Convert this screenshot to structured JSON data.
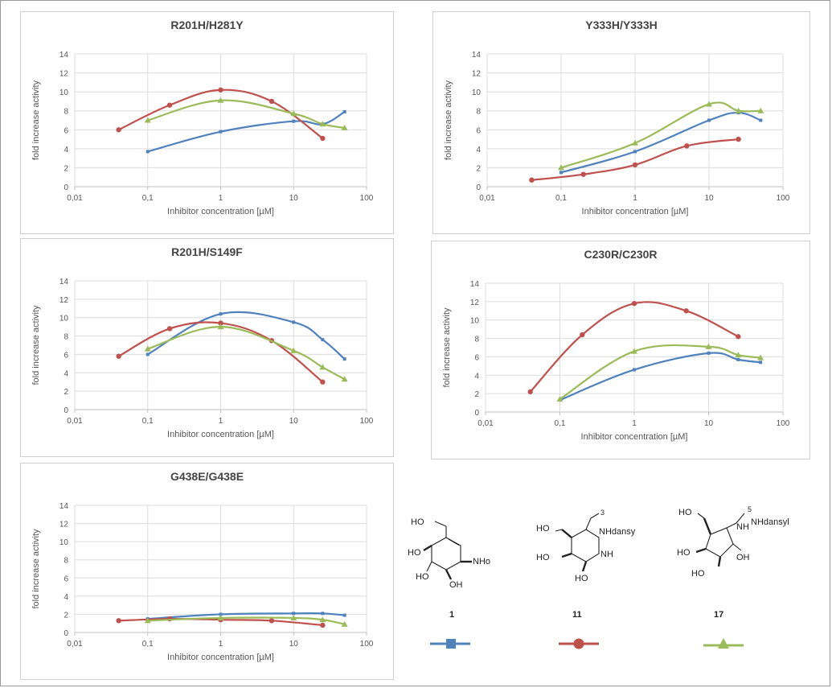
{
  "chart_data": [
    {
      "type": "line",
      "title": "R201H/H281Y",
      "xlabel": "Inhibitor concentration [µM]",
      "ylabel": "fold increase activity",
      "xscale": "log",
      "xlim": [
        0.01,
        100
      ],
      "ylim": [
        0,
        14
      ],
      "xticks": [
        "0,01",
        "0,1",
        "1",
        "10",
        "100"
      ],
      "yticks": [
        "0",
        "2",
        "4",
        "6",
        "8",
        "10",
        "12",
        "14"
      ],
      "grid": true,
      "series": [
        {
          "color": "#4f81bd",
          "marker": "square",
          "x": [
            0.1,
            1,
            10,
            25,
            50
          ],
          "y": [
            3.7,
            5.8,
            6.9,
            6.6,
            7.9
          ]
        },
        {
          "color": "#c0504d",
          "marker": "circle",
          "x": [
            0.04,
            0.2,
            1,
            5,
            25
          ],
          "y": [
            6.0,
            8.6,
            10.2,
            9.0,
            5.1
          ]
        },
        {
          "color": "#9bbb59",
          "marker": "triangle",
          "x": [
            0.1,
            1,
            10,
            25,
            50
          ],
          "y": [
            7.0,
            9.1,
            7.7,
            6.6,
            6.2
          ]
        }
      ]
    },
    {
      "type": "line",
      "title": "Y333H/Y333H",
      "xlabel": "Inhibitor concentration [µM]",
      "ylabel": "fold increase activity",
      "xscale": "log",
      "xlim": [
        0.01,
        100
      ],
      "ylim": [
        0,
        14
      ],
      "xticks": [
        "0,01",
        "0,1",
        "1",
        "10",
        "100"
      ],
      "yticks": [
        "0",
        "2",
        "4",
        "6",
        "8",
        "10",
        "12",
        "14"
      ],
      "grid": true,
      "series": [
        {
          "color": "#4f81bd",
          "marker": "square",
          "x": [
            0.1,
            1,
            10,
            25,
            50
          ],
          "y": [
            1.5,
            3.7,
            7.0,
            7.8,
            7.0
          ]
        },
        {
          "color": "#c0504d",
          "marker": "circle",
          "x": [
            0.04,
            0.2,
            1,
            5,
            25
          ],
          "y": [
            0.7,
            1.3,
            2.3,
            4.3,
            5.0
          ]
        },
        {
          "color": "#9bbb59",
          "marker": "triangle",
          "x": [
            0.1,
            1,
            10,
            25,
            50
          ],
          "y": [
            2.0,
            4.6,
            8.7,
            8.0,
            8.0
          ]
        }
      ]
    },
    {
      "type": "line",
      "title": "R201H/S149F",
      "xlabel": "Inhibitor concentration [µM]",
      "ylabel": "fold increase activity",
      "xscale": "log",
      "xlim": [
        0.01,
        100
      ],
      "ylim": [
        0,
        14
      ],
      "xticks": [
        "0,01",
        "0,1",
        "1",
        "10",
        "100"
      ],
      "yticks": [
        "0",
        "2",
        "4",
        "6",
        "8",
        "10",
        "12",
        "14"
      ],
      "grid": true,
      "series": [
        {
          "color": "#4f81bd",
          "marker": "square",
          "x": [
            0.1,
            1,
            10,
            25,
            50
          ],
          "y": [
            6.0,
            10.4,
            9.5,
            7.6,
            5.5
          ]
        },
        {
          "color": "#c0504d",
          "marker": "circle",
          "x": [
            0.04,
            0.2,
            1,
            5,
            25
          ],
          "y": [
            5.8,
            8.8,
            9.4,
            7.5,
            3.0
          ]
        },
        {
          "color": "#9bbb59",
          "marker": "triangle",
          "x": [
            0.1,
            1,
            10,
            25,
            50
          ],
          "y": [
            6.6,
            9.0,
            6.4,
            4.6,
            3.3
          ]
        }
      ]
    },
    {
      "type": "line",
      "title": "C230R/C230R",
      "xlabel": "Inhibitor concentration [µM]",
      "ylabel": "fold increase activity",
      "xscale": "log",
      "xlim": [
        0.01,
        100
      ],
      "ylim": [
        0,
        14
      ],
      "xticks": [
        "0,01",
        "0,1",
        "1",
        "10",
        "100"
      ],
      "yticks": [
        "0",
        "2",
        "4",
        "6",
        "8",
        "10",
        "12",
        "14"
      ],
      "grid": true,
      "series": [
        {
          "color": "#4f81bd",
          "marker": "square",
          "x": [
            0.1,
            1,
            10,
            25,
            50
          ],
          "y": [
            1.3,
            4.6,
            6.4,
            5.7,
            5.4
          ]
        },
        {
          "color": "#c0504d",
          "marker": "circle",
          "x": [
            0.04,
            0.2,
            1,
            5,
            25
          ],
          "y": [
            2.2,
            8.4,
            11.8,
            11.0,
            8.2
          ]
        },
        {
          "color": "#9bbb59",
          "marker": "triangle",
          "x": [
            0.1,
            1,
            10,
            25,
            50
          ],
          "y": [
            1.4,
            6.6,
            7.1,
            6.2,
            5.9
          ]
        }
      ]
    },
    {
      "type": "line",
      "title": "G438E/G438E",
      "xlabel": "Inhibitor concentration [µM]",
      "ylabel": "fold increase activity",
      "xscale": "log",
      "xlim": [
        0.01,
        100
      ],
      "ylim": [
        0,
        14
      ],
      "xticks": [
        "0,01",
        "0,1",
        "1",
        "10",
        "100"
      ],
      "yticks": [
        "0",
        "2",
        "4",
        "6",
        "8",
        "10",
        "12",
        "14"
      ],
      "grid": true,
      "series": [
        {
          "color": "#4f81bd",
          "marker": "square",
          "x": [
            0.1,
            1,
            10,
            25,
            50
          ],
          "y": [
            1.5,
            2.0,
            2.1,
            2.1,
            1.9
          ]
        },
        {
          "color": "#c0504d",
          "marker": "circle",
          "x": [
            0.04,
            0.2,
            1,
            5,
            25
          ],
          "y": [
            1.3,
            1.5,
            1.4,
            1.3,
            0.8
          ]
        },
        {
          "color": "#9bbb59",
          "marker": "triangle",
          "x": [
            0.1,
            1,
            10,
            25,
            50
          ],
          "y": [
            1.3,
            1.6,
            1.6,
            1.4,
            0.9
          ]
        }
      ]
    }
  ],
  "compounds": [
    {
      "label": "1",
      "substituent": "NHoctyl",
      "color": "#4f81bd",
      "marker": "square",
      "icon": "square-marker-icon"
    },
    {
      "label": "11",
      "substituent": "NHdansyl",
      "color": "#c0504d",
      "marker": "circle",
      "icon": "circle-marker-icon"
    },
    {
      "label": "17",
      "substituent": "NHdansyl",
      "color": "#9bbb59",
      "marker": "triangle",
      "icon": "triangle-marker-icon"
    }
  ],
  "structure_text": {
    "c1_ho_top": "HO",
    "c1_ho_mid": "HO",
    "c1_ho_b1": "HO",
    "c1_oh_b2": "OH",
    "c11_ho_top": "HO",
    "c11_ho_mid": "HO",
    "c11_ho_bot": "HO",
    "c11_nh": "NH",
    "c11_sub": "3",
    "c17_ho_top": "HO",
    "c17_ho_mid": "HO",
    "c17_ho_b1": "HO",
    "c17_oh_b2": "OH",
    "c17_nh": "NH",
    "c17_sub": "5"
  }
}
